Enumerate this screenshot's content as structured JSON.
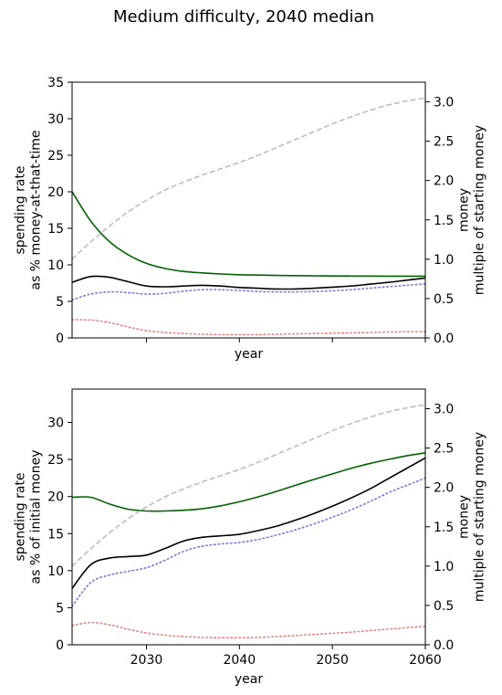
{
  "figure": {
    "title": "Medium difficulty, 2040 median"
  },
  "colors": {
    "money": "#bdbdbd",
    "median_spending": "#000000",
    "upper_spending": "#006400",
    "blue_dotted": "#7777ee",
    "red_dotted": "#f08080"
  },
  "chart_data": [
    {
      "type": "line",
      "xlabel": "year",
      "ylabel": "spending rate\nas % money-at-that-time",
      "y2label": "money\nmultiple of starting money",
      "xlim": [
        2022,
        2060
      ],
      "ylim": [
        0,
        35
      ],
      "y2lim": [
        0,
        3.25
      ],
      "xticks": [
        2030,
        2040,
        2050,
        2060
      ],
      "show_xtick_labels": false,
      "yticks": [
        0,
        5,
        10,
        15,
        20,
        25,
        30,
        35
      ],
      "y2ticks": [
        0.0,
        0.5,
        1.0,
        1.5,
        2.0,
        2.5,
        3.0
      ],
      "grid": false,
      "x": [
        2022,
        2024,
        2026,
        2028,
        2030,
        2032,
        2034,
        2036,
        2038,
        2040,
        2042,
        2044,
        2046,
        2048,
        2050,
        2052,
        2054,
        2056,
        2058,
        2060
      ],
      "series": [
        {
          "color_key": "upper_spending",
          "style": "solid",
          "axis": "left",
          "values": [
            20.0,
            16.0,
            13.2,
            11.4,
            10.2,
            9.5,
            9.1,
            8.9,
            8.75,
            8.65,
            8.6,
            8.55,
            8.52,
            8.5,
            8.48,
            8.47,
            8.46,
            8.45,
            8.45,
            8.45
          ]
        },
        {
          "color_key": "median_spending",
          "style": "solid",
          "axis": "left",
          "values": [
            7.6,
            8.4,
            8.3,
            7.7,
            7.1,
            7.0,
            7.1,
            7.2,
            7.1,
            6.9,
            6.8,
            6.7,
            6.7,
            6.8,
            6.95,
            7.1,
            7.35,
            7.6,
            7.9,
            8.2
          ]
        },
        {
          "color_key": "blue_dotted",
          "style": "dotted",
          "axis": "left",
          "values": [
            5.2,
            6.0,
            6.3,
            6.2,
            6.0,
            6.1,
            6.4,
            6.6,
            6.6,
            6.5,
            6.35,
            6.3,
            6.3,
            6.35,
            6.45,
            6.6,
            6.8,
            7.0,
            7.2,
            7.4
          ]
        },
        {
          "color_key": "red_dotted",
          "style": "dotted",
          "axis": "left",
          "values": [
            2.5,
            2.45,
            2.1,
            1.5,
            1.0,
            0.75,
            0.6,
            0.5,
            0.45,
            0.45,
            0.45,
            0.5,
            0.55,
            0.6,
            0.65,
            0.7,
            0.75,
            0.8,
            0.85,
            0.85
          ]
        },
        {
          "color_key": "money",
          "style": "dashed",
          "axis": "right",
          "values": [
            1.0,
            1.22,
            1.42,
            1.6,
            1.75,
            1.88,
            1.98,
            2.07,
            2.15,
            2.23,
            2.32,
            2.42,
            2.52,
            2.62,
            2.72,
            2.81,
            2.89,
            2.96,
            3.01,
            3.05
          ]
        }
      ]
    },
    {
      "type": "line",
      "xlabel": "year",
      "ylabel": "spending rate\nas % of initial money",
      "y2label": "money\nmultiple of starting money",
      "xlim": [
        2022,
        2060
      ],
      "ylim": [
        0,
        34.5
      ],
      "y2lim": [
        0,
        3.25
      ],
      "xticks": [
        2030,
        2040,
        2050,
        2060
      ],
      "show_xtick_labels": true,
      "yticks": [
        0,
        5,
        10,
        15,
        20,
        25,
        30
      ],
      "y2ticks": [
        0.0,
        0.5,
        1.0,
        1.5,
        2.0,
        2.5,
        3.0
      ],
      "grid": false,
      "x": [
        2022,
        2024,
        2026,
        2028,
        2030,
        2032,
        2034,
        2036,
        2038,
        2040,
        2042,
        2044,
        2046,
        2048,
        2050,
        2052,
        2054,
        2056,
        2058,
        2060
      ],
      "series": [
        {
          "color_key": "upper_spending",
          "style": "solid",
          "axis": "left",
          "values": [
            19.9,
            19.9,
            19.0,
            18.3,
            18.05,
            18.05,
            18.15,
            18.35,
            18.75,
            19.3,
            19.95,
            20.7,
            21.5,
            22.3,
            23.05,
            23.8,
            24.45,
            25.0,
            25.5,
            25.9
          ]
        },
        {
          "color_key": "median_spending",
          "style": "solid",
          "axis": "left",
          "values": [
            7.6,
            10.8,
            11.7,
            11.9,
            12.1,
            13.0,
            14.0,
            14.5,
            14.7,
            14.9,
            15.4,
            16.0,
            16.8,
            17.7,
            18.7,
            19.8,
            21.0,
            22.4,
            23.8,
            25.2
          ]
        },
        {
          "color_key": "blue_dotted",
          "style": "dotted",
          "axis": "left",
          "values": [
            5.2,
            8.4,
            9.4,
            9.9,
            10.4,
            11.4,
            12.6,
            13.3,
            13.6,
            13.8,
            14.2,
            14.8,
            15.5,
            16.3,
            17.2,
            18.2,
            19.3,
            20.5,
            21.5,
            22.5
          ]
        },
        {
          "color_key": "red_dotted",
          "style": "dotted",
          "axis": "left",
          "values": [
            2.6,
            3.0,
            2.7,
            2.1,
            1.6,
            1.3,
            1.1,
            1.0,
            0.95,
            0.95,
            1.0,
            1.1,
            1.25,
            1.4,
            1.55,
            1.7,
            1.9,
            2.1,
            2.3,
            2.5
          ]
        },
        {
          "color_key": "money",
          "style": "dashed",
          "axis": "right",
          "values": [
            1.0,
            1.22,
            1.42,
            1.6,
            1.75,
            1.88,
            1.98,
            2.07,
            2.15,
            2.23,
            2.32,
            2.42,
            2.52,
            2.62,
            2.72,
            2.81,
            2.89,
            2.96,
            3.01,
            3.05
          ]
        }
      ]
    }
  ]
}
